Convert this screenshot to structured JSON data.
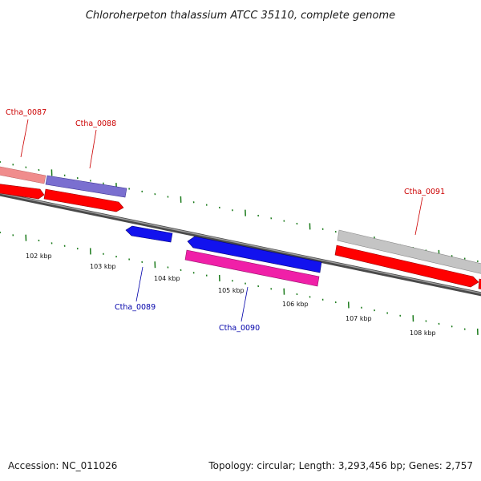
{
  "title": "Chloroherpeton thalassium ATCC 35110, complete genome",
  "footer": {
    "accession": "Accession: NC_011026",
    "summary": "Topology: circular; Length: 3,293,456 bp; Genes: 2,757"
  },
  "colors": {
    "forward_label": "#cc0000",
    "reverse_label": "#0000aa",
    "backbone": "#777777",
    "ticks": "#1a7a1a",
    "cds": "#ff0000",
    "gene_forward": "#f08c8c",
    "protein_fam": "#7a6fd0",
    "reverse_cds": "#1212ee",
    "reverse_gene": "#f020a8",
    "gray_feature": "#c4c4c4"
  },
  "scale": {
    "labels": [
      "102 kbp",
      "103 kbp",
      "104 kbp",
      "105 kbp",
      "106 kbp",
      "107 kbp",
      "108 kbp"
    ]
  },
  "genes": [
    {
      "name": "Ctha_0087",
      "strand": "forward"
    },
    {
      "name": "Ctha_0088",
      "strand": "forward"
    },
    {
      "name": "Ctha_0089",
      "strand": "reverse"
    },
    {
      "name": "Ctha_0090",
      "strand": "reverse"
    },
    {
      "name": "Ctha_0091",
      "strand": "forward"
    }
  ]
}
